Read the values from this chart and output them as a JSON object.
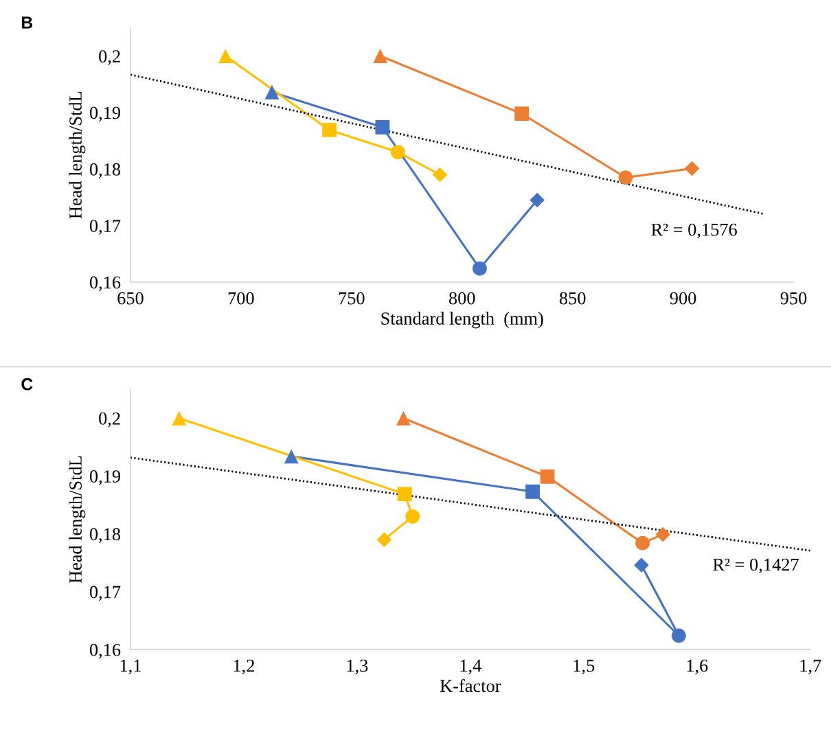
{
  "chart_data": [
    {
      "type": "line",
      "title": "B",
      "xlabel": "Standard length  (mm)",
      "ylabel": "Head length/StdL",
      "xlim": [
        650,
        950
      ],
      "xticks": [
        650,
        700,
        750,
        800,
        850,
        900,
        950
      ],
      "ylim": [
        0.16,
        0.205
      ],
      "yticks": [
        {
          "value": 0.16,
          "label": "0,16"
        },
        {
          "value": 0.17,
          "label": "0,17"
        },
        {
          "value": 0.18,
          "label": "0,18"
        },
        {
          "value": 0.19,
          "label": "0,19"
        },
        {
          "value": 0.2,
          "label": "0,2"
        }
      ],
      "grid": false,
      "legend": false,
      "annotations": [
        "R² = 0,1576"
      ],
      "series": [
        {
          "color": "#4472c4",
          "marker": "none",
          "x": [
            714,
            764,
            808,
            834
          ],
          "values": [
            0.1936,
            0.1874,
            0.1624,
            0.1745
          ]
        },
        {
          "color": "#ed7d31",
          "marker": "none",
          "x": [
            763,
            827,
            874,
            904
          ],
          "values": [
            0.2,
            0.1898,
            0.1785,
            0.1801
          ]
        },
        {
          "color": "#ffc000",
          "marker": "none",
          "x": [
            693,
            740,
            771,
            790
          ],
          "values": [
            0.2,
            0.1869,
            0.183,
            0.179
          ]
        },
        {
          "type": "line",
          "color": "#000000",
          "marker": "none",
          "line_style": "dotted",
          "x": [
            650,
            936
          ],
          "values": [
            0.1967,
            0.1721
          ]
        },
        {
          "type": "scatter",
          "marker": "triangle",
          "x": [
            714,
            763,
            693
          ],
          "values": [
            0.1936,
            0.2,
            0.2
          ],
          "colors": [
            "#4472c4",
            "#ed7d31",
            "#ffc000"
          ]
        },
        {
          "type": "scatter",
          "marker": "square",
          "x": [
            764,
            827,
            740
          ],
          "values": [
            0.1874,
            0.1898,
            0.1869
          ],
          "colors": [
            "#4472c4",
            "#ed7d31",
            "#ffc000"
          ]
        },
        {
          "type": "scatter",
          "marker": "circle",
          "x": [
            808,
            874,
            771
          ],
          "values": [
            0.1624,
            0.1785,
            0.183
          ],
          "colors": [
            "#4472c4",
            "#ed7d31",
            "#ffc000"
          ]
        },
        {
          "type": "scatter",
          "marker": "diamond",
          "x": [
            834,
            904,
            790
          ],
          "values": [
            0.1745,
            0.1801,
            0.179
          ],
          "colors": [
            "#4472c4",
            "#ed7d31",
            "#ffc000"
          ]
        }
      ]
    },
    {
      "type": "line",
      "title": "C",
      "xlabel": "K-factor",
      "ylabel": "Head length/StdL",
      "xlim": [
        1.1,
        1.7
      ],
      "xticks": [
        {
          "value": 1.1,
          "label": "1,1"
        },
        {
          "value": 1.2,
          "label": "1,2"
        },
        {
          "value": 1.3,
          "label": "1,3"
        },
        {
          "value": 1.4,
          "label": "1,4"
        },
        {
          "value": 1.5,
          "label": "1,5"
        },
        {
          "value": 1.6,
          "label": "1,6"
        },
        {
          "value": 1.7,
          "label": "1,7"
        }
      ],
      "ylim": [
        0.16,
        0.205
      ],
      "yticks": [
        {
          "value": 0.16,
          "label": "0,16"
        },
        {
          "value": 0.17,
          "label": "0,17"
        },
        {
          "value": 0.18,
          "label": "0,18"
        },
        {
          "value": 0.19,
          "label": "0,19"
        },
        {
          "value": 0.2,
          "label": "0,2"
        }
      ],
      "grid": false,
      "legend": false,
      "annotations": [
        "R² = 0,1427"
      ],
      "series": [
        {
          "color": "#4472c4",
          "marker": "none",
          "x": [
            1.242,
            1.455,
            1.584,
            1.551
          ],
          "values": [
            0.1934,
            0.1873,
            0.1624,
            0.1746
          ]
        },
        {
          "color": "#ed7d31",
          "marker": "none",
          "x": [
            1.341,
            1.468,
            1.552,
            1.57
          ],
          "values": [
            0.2,
            0.1899,
            0.1784,
            0.1799
          ]
        },
        {
          "color": "#ffc000",
          "marker": "none",
          "x": [
            1.143,
            1.342,
            1.349,
            1.324
          ],
          "values": [
            0.2,
            0.1869,
            0.183,
            0.179
          ]
        },
        {
          "type": "line",
          "color": "#000000",
          "marker": "none",
          "line_style": "dotted",
          "x": [
            1.1,
            1.7
          ],
          "values": [
            0.1932,
            0.1771
          ]
        },
        {
          "type": "scatter",
          "marker": "triangle",
          "x": [
            1.242,
            1.341,
            1.143
          ],
          "values": [
            0.1934,
            0.2,
            0.2
          ],
          "colors": [
            "#4472c4",
            "#ed7d31",
            "#ffc000"
          ]
        },
        {
          "type": "scatter",
          "marker": "square",
          "x": [
            1.455,
            1.468,
            1.342
          ],
          "values": [
            0.1873,
            0.1899,
            0.1869
          ],
          "colors": [
            "#4472c4",
            "#ed7d31",
            "#ffc000"
          ]
        },
        {
          "type": "scatter",
          "marker": "circle",
          "x": [
            1.584,
            1.552,
            1.349
          ],
          "values": [
            0.1624,
            0.1784,
            0.183
          ],
          "colors": [
            "#4472c4",
            "#ed7d31",
            "#ffc000"
          ]
        },
        {
          "type": "scatter",
          "marker": "diamond",
          "x": [
            1.551,
            1.57,
            1.324
          ],
          "values": [
            0.1746,
            0.1799,
            0.179
          ],
          "colors": [
            "#4472c4",
            "#ed7d31",
            "#ffc000"
          ]
        }
      ]
    }
  ]
}
